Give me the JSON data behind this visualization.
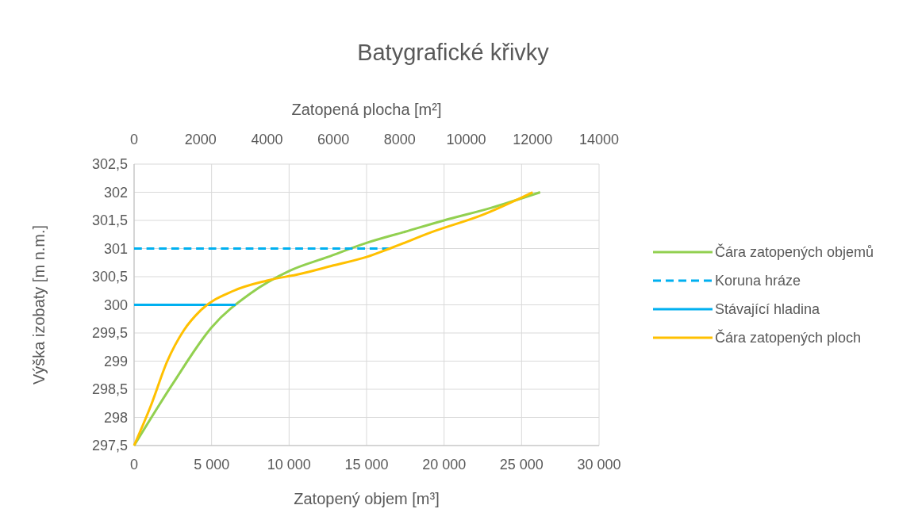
{
  "chart_data": {
    "type": "line",
    "title": "Batygrafické křivky",
    "xlabel": "Zatopený objem [m³]",
    "x2label": "Zatopená plocha [m²]",
    "ylabel": "Výška izobaty [m n.m.]",
    "xlim": [
      0,
      30000
    ],
    "xticks": [
      0,
      {
        "value": 5000,
        "label": "5 000"
      },
      {
        "value": 10000,
        "label": "10 000"
      },
      {
        "value": 15000,
        "label": "15 000"
      },
      {
        "value": 20000,
        "label": "20 000"
      },
      {
        "value": 25000,
        "label": "25 000"
      },
      {
        "value": 30000,
        "label": "30 000"
      }
    ],
    "x2lim": [
      0,
      14000
    ],
    "x2ticks": [
      0,
      2000,
      4000,
      6000,
      8000,
      10000,
      12000,
      14000
    ],
    "ylim": [
      297.5,
      302.5
    ],
    "yticks": [
      {
        "value": 297.5,
        "label": "297,5"
      },
      298,
      {
        "value": 298.5,
        "label": "298,5"
      },
      299,
      {
        "value": 299.5,
        "label": "299,5"
      },
      300,
      {
        "value": 300.5,
        "label": "300,5"
      },
      301,
      {
        "value": 301.5,
        "label": "301,5"
      },
      302,
      {
        "value": 302.5,
        "label": "302,5"
      }
    ],
    "grid": true,
    "legend": "right",
    "series": [
      {
        "name": "Čára zatopených objemů",
        "color": "#92d050",
        "line_style": "solid",
        "x": [
          0,
          2500,
          5000,
          7500,
          10000,
          12500,
          15000,
          17500,
          20000,
          23000,
          26200
        ],
        "values": [
          297.5,
          298.6,
          299.6,
          300.2,
          300.6,
          300.85,
          301.1,
          301.3,
          301.5,
          301.72,
          302
        ]
      },
      {
        "name": "Koruna hráze",
        "color": "#00b0f0",
        "line_style": "dashed",
        "x": [
          0,
          16500
        ],
        "values": [
          301,
          301
        ]
      },
      {
        "name": "Stávající hladina",
        "color": "#00b0f0",
        "line_style": "solid",
        "x": [
          0,
          6550
        ],
        "values": [
          300,
          300
        ]
      },
      {
        "name": "Čára zatopených ploch",
        "color": "#ffc000",
        "line_style": "solid",
        "axis": "x2",
        "x": [
          0,
          500,
          1000,
          1500,
          2000,
          3000,
          4000,
          5000,
          6000,
          7000,
          7700,
          9000,
          10500,
          12000
        ],
        "values": [
          297.5,
          298.2,
          299.0,
          299.55,
          299.9,
          300.25,
          300.43,
          300.55,
          300.7,
          300.85,
          301.0,
          301.3,
          301.6,
          302
        ]
      }
    ]
  }
}
